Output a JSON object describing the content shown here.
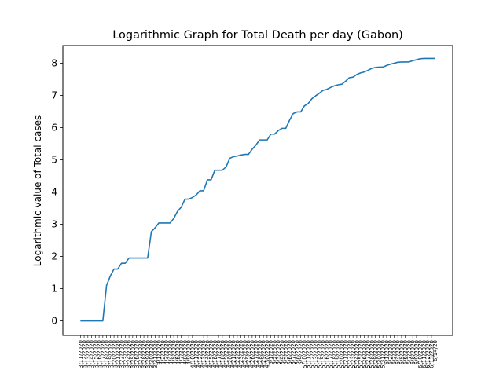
{
  "chart_data": {
    "type": "line",
    "title": "Logarithmic Graph for Total Death per day (Gabon)",
    "xlabel": "",
    "ylabel": "Logarithmic value of Total cases",
    "ylim": [
      -0.45,
      8.55
    ],
    "yticks": [
      0,
      1,
      2,
      3,
      4,
      5,
      6,
      7,
      8
    ],
    "grid": false,
    "series_color": "#1f77b4",
    "x_ticks_note": "x tick labels are dense overlapping dates (e.g. 3/11/2020, 3/12/2020, …, 6/14/20)",
    "x": [
      "3/11/2020",
      "3/12/2020",
      "3/13/2020",
      "3/14/2020",
      "3/15/2020",
      "3/16/2020",
      "3/17/2020",
      "3/18/2020",
      "3/19/2020",
      "3/20/2020",
      "3/21/2020",
      "3/22/2020",
      "3/23/2020",
      "3/24/2020",
      "3/25/2020",
      "3/26/2020",
      "3/27/2020",
      "3/28/2020",
      "3/29/2020",
      "3/30/2020",
      "3/31/2020",
      "4/1/2020",
      "4/2/2020",
      "4/3/2020",
      "4/4/2020",
      "4/5/2020",
      "4/6/2020",
      "4/7/2020",
      "4/8/2020",
      "4/9/2020",
      "4/10/2020",
      "4/11/2020",
      "4/12/2020",
      "4/13/2020",
      "4/14/2020",
      "4/15/2020",
      "4/16/2020",
      "4/17/2020",
      "4/18/2020",
      "4/19/2020",
      "4/20/2020",
      "4/21/2020",
      "4/22/2020",
      "4/23/2020",
      "4/24/2020",
      "4/25/2020",
      "4/26/2020",
      "4/27/2020",
      "4/28/2020",
      "4/29/2020",
      "4/30/2020",
      "5/1/2020",
      "5/2/2020",
      "5/3/2020",
      "5/4/2020",
      "5/5/2020",
      "5/6/2020",
      "5/7/2020",
      "5/8/2020",
      "5/9/2020",
      "5/10/2020",
      "5/11/2020",
      "5/12/2020",
      "5/13/2020",
      "5/14/2020",
      "5/15/2020",
      "5/16/2020",
      "5/17/2020",
      "5/18/2020",
      "5/19/2020",
      "5/20/2020",
      "5/21/2020",
      "5/22/2020",
      "5/23/2020",
      "5/24/2020",
      "5/25/2020",
      "5/26/2020",
      "5/27/2020",
      "5/28/2020",
      "5/29/2020",
      "5/30/2020",
      "5/31/2020",
      "6/1/2020",
      "6/2/2020",
      "6/3/2020",
      "6/4/2020",
      "6/5/2020",
      "6/6/2020",
      "6/7/2020",
      "6/8/2020",
      "6/9/2020",
      "6/10/2020",
      "6/11/2020",
      "6/12/2020",
      "6/13/2020",
      "6/14/20"
    ],
    "series": [
      {
        "values": [
          0,
          0,
          0,
          0,
          0,
          0,
          0,
          1.1,
          1.39,
          1.61,
          1.61,
          1.79,
          1.79,
          1.95,
          1.95,
          1.95,
          1.95,
          1.95,
          1.95,
          2.77,
          2.89,
          3.04,
          3.04,
          3.04,
          3.04,
          3.18,
          3.4,
          3.53,
          3.78,
          3.78,
          3.83,
          3.91,
          4.04,
          4.04,
          4.38,
          4.38,
          4.68,
          4.68,
          4.68,
          4.78,
          5.05,
          5.1,
          5.12,
          5.15,
          5.17,
          5.17,
          5.33,
          5.46,
          5.62,
          5.62,
          5.62,
          5.8,
          5.8,
          5.91,
          5.98,
          5.98,
          6.23,
          6.44,
          6.49,
          6.49,
          6.68,
          6.75,
          6.9,
          6.99,
          7.07,
          7.16,
          7.19,
          7.25,
          7.3,
          7.33,
          7.35,
          7.44,
          7.55,
          7.57,
          7.65,
          7.7,
          7.73,
          7.78,
          7.84,
          7.87,
          7.88,
          7.88,
          7.93,
          7.97,
          8.0,
          8.03,
          8.04,
          8.04,
          8.04,
          8.08,
          8.11,
          8.14,
          8.15,
          8.15,
          8.15,
          8.15
        ]
      }
    ]
  }
}
